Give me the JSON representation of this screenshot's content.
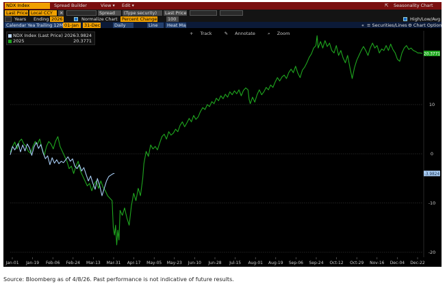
{
  "toolbar": {
    "security": "NDX Index",
    "spread_builder": "Spread Builder",
    "view_menu": "View ▾",
    "edit_menu": "Edit ▾",
    "chart_title": "Seasonality Chart",
    "field1": "Last Price",
    "currency": "Local CCY",
    "spread": "Spread",
    "type_security": "(Type security)",
    "field2": "Last Price",
    "years_label": "Years",
    "ending_label": "Ending",
    "ending_value": "2026",
    "normalize_label": "Normalize Chart",
    "normalize_mode": "Percent Change",
    "normalize_value": "100",
    "high_low_avg": "High/Low/Avg",
    "calendar_year": "Calendar Year",
    "trailing": "Trailing 12M",
    "date_from": "01-Jan",
    "date_to": "31-Dec",
    "frequency": "Daily",
    "line_btn": "Line",
    "heatmap_btn": "Heat Map",
    "securities_lines": "Securities/Lines",
    "chart_options": "Chart Options"
  },
  "tools": {
    "track": "Track",
    "annotate": "Annotate",
    "zoom": "Zoom"
  },
  "legend": [
    {
      "label": "NDX Index (Last Price) 2026",
      "value": "-3.9824",
      "color": "#b7d3f2"
    },
    {
      "label": "2025",
      "value": "20.3771",
      "color": "#1fa81f"
    }
  ],
  "source_note": "Source: Bloomberg as of 4/8/26. Past performance is not indicative of future results.",
  "chart_data": {
    "type": "line",
    "x_tick_labels": [
      "Jan-01",
      "Jan-19",
      "Feb-06",
      "Feb-24",
      "Mar-13",
      "Mar-31",
      "Apr-17",
      "May-05",
      "May-23",
      "Jun-10",
      "Jun-28",
      "Jul-15",
      "Aug-01",
      "Aug-19",
      "Sep-06",
      "Sep-24",
      "Oct-12",
      "Oct-29",
      "Nov-16",
      "Dec-04",
      "Dec-22"
    ],
    "y_ticks": [
      -20,
      -10,
      0,
      10
    ],
    "ylim": [
      -21,
      25
    ],
    "x_day_range": [
      1,
      365
    ],
    "grid": true,
    "series": [
      {
        "name": "2026",
        "color": "#a8cdf5",
        "last_value_label": "-3.9824",
        "points": [
          [
            1,
            -0.2
          ],
          [
            3,
            1.5
          ],
          [
            5,
            0.8
          ],
          [
            8,
            2.1
          ],
          [
            10,
            0.4
          ],
          [
            12,
            1.8
          ],
          [
            14,
            0.6
          ],
          [
            16,
            2.0
          ],
          [
            18,
            1.2
          ],
          [
            20,
            -0.3
          ],
          [
            22,
            1.4
          ],
          [
            24,
            2.3
          ],
          [
            26,
            1.1
          ],
          [
            28,
            1.9
          ],
          [
            30,
            0.2
          ],
          [
            32,
            -1.0
          ],
          [
            34,
            -0.4
          ],
          [
            36,
            -2.2
          ],
          [
            38,
            -0.8
          ],
          [
            40,
            -1.9
          ],
          [
            42,
            -1.2
          ],
          [
            44,
            -2.0
          ],
          [
            46,
            -1.5
          ],
          [
            48,
            -1.8
          ],
          [
            50,
            -1.2
          ],
          [
            52,
            -0.6
          ],
          [
            54,
            -1.5
          ],
          [
            56,
            -1.0
          ],
          [
            58,
            -2.5
          ],
          [
            60,
            -3.0
          ],
          [
            62,
            -2.2
          ],
          [
            64,
            -3.5
          ],
          [
            66,
            -2.8
          ],
          [
            68,
            -4.2
          ],
          [
            70,
            -5.5
          ],
          [
            72,
            -4.5
          ],
          [
            74,
            -6.0
          ],
          [
            76,
            -7.2
          ],
          [
            78,
            -5.0
          ],
          [
            80,
            -6.5
          ],
          [
            82,
            -8.5
          ],
          [
            84,
            -7.0
          ],
          [
            86,
            -5.5
          ],
          [
            88,
            -4.6
          ],
          [
            90,
            -4.3
          ],
          [
            92,
            -4.0
          ],
          [
            93,
            -3.98
          ]
        ]
      },
      {
        "name": "2025",
        "color": "#1fa81f",
        "last_value_label": "20.3771",
        "points": [
          [
            1,
            0.3
          ],
          [
            3,
            1.5
          ],
          [
            5,
            2.4
          ],
          [
            7,
            1.0
          ],
          [
            9,
            2.5
          ],
          [
            11,
            3.0
          ],
          [
            13,
            2.0
          ],
          [
            15,
            1.5
          ],
          [
            17,
            0.5
          ],
          [
            19,
            0.1
          ],
          [
            21,
            1.5
          ],
          [
            23,
            2.5
          ],
          [
            25,
            2.0
          ],
          [
            27,
            3.0
          ],
          [
            29,
            1.2
          ],
          [
            31,
            -0.3
          ],
          [
            33,
            1.5
          ],
          [
            35,
            2.5
          ],
          [
            37,
            2.0
          ],
          [
            39,
            1.0
          ],
          [
            41,
            2.6
          ],
          [
            43,
            3.5
          ],
          [
            45,
            1.5
          ],
          [
            47,
            0.5
          ],
          [
            49,
            -0.5
          ],
          [
            51,
            -1.5
          ],
          [
            53,
            -3.0
          ],
          [
            55,
            -2.5
          ],
          [
            57,
            -4.0
          ],
          [
            59,
            -2.5
          ],
          [
            61,
            -1.5
          ],
          [
            63,
            -3.5
          ],
          [
            65,
            -4.5
          ],
          [
            67,
            -5.5
          ],
          [
            69,
            -6.5
          ],
          [
            71,
            -6.0
          ],
          [
            73,
            -7.5
          ],
          [
            75,
            -6.2
          ],
          [
            77,
            -5.5
          ],
          [
            79,
            -7.0
          ],
          [
            81,
            -5.5
          ],
          [
            83,
            -6.8
          ],
          [
            85,
            -7.5
          ],
          [
            87,
            -8.5
          ],
          [
            89,
            -9.0
          ],
          [
            91,
            -9.5
          ],
          [
            92,
            -15.0
          ],
          [
            93,
            -16.5
          ],
          [
            94,
            -14.5
          ],
          [
            95,
            -18.5
          ],
          [
            96,
            -15.5
          ],
          [
            97,
            -17.5
          ],
          [
            98,
            -11.5
          ],
          [
            100,
            -12.5
          ],
          [
            102,
            -11.0
          ],
          [
            104,
            -13.0
          ],
          [
            106,
            -14.5
          ],
          [
            108,
            -10.5
          ],
          [
            110,
            -8.0
          ],
          [
            112,
            -9.5
          ],
          [
            114,
            -7.0
          ],
          [
            116,
            -8.5
          ],
          [
            118,
            -5.0
          ],
          [
            119,
            -2.0
          ],
          [
            121,
            0.5
          ],
          [
            123,
            -0.5
          ],
          [
            125,
            1.8
          ],
          [
            127,
            1.0
          ],
          [
            129,
            1.5
          ],
          [
            131,
            0.8
          ],
          [
            133,
            2.2
          ],
          [
            135,
            3.5
          ],
          [
            137,
            4.0
          ],
          [
            139,
            3.0
          ],
          [
            141,
            4.5
          ],
          [
            143,
            3.8
          ],
          [
            145,
            4.2
          ],
          [
            147,
            5.0
          ],
          [
            149,
            4.5
          ],
          [
            151,
            5.8
          ],
          [
            153,
            6.5
          ],
          [
            155,
            5.5
          ],
          [
            157,
            6.3
          ],
          [
            159,
            7.2
          ],
          [
            161,
            6.5
          ],
          [
            163,
            7.8
          ],
          [
            165,
            7.0
          ],
          [
            167,
            7.5
          ],
          [
            169,
            8.6
          ],
          [
            171,
            9.4
          ],
          [
            173,
            9.0
          ],
          [
            175,
            10.0
          ],
          [
            177,
            9.6
          ],
          [
            179,
            10.6
          ],
          [
            181,
            10.2
          ],
          [
            183,
            11.3
          ],
          [
            185,
            10.8
          ],
          [
            187,
            11.8
          ],
          [
            189,
            11.2
          ],
          [
            191,
            12.1
          ],
          [
            193,
            11.5
          ],
          [
            195,
            12.6
          ],
          [
            197,
            12.0
          ],
          [
            199,
            12.8
          ],
          [
            201,
            12.2
          ],
          [
            203,
            13.0
          ],
          [
            205,
            11.8
          ],
          [
            207,
            12.9
          ],
          [
            209,
            13.4
          ],
          [
            211,
            13.0
          ],
          [
            212,
            11.0
          ],
          [
            213,
            10.2
          ],
          [
            215,
            11.5
          ],
          [
            217,
            10.5
          ],
          [
            219,
            12.0
          ],
          [
            221,
            13.0
          ],
          [
            223,
            12.0
          ],
          [
            225,
            12.6
          ],
          [
            227,
            13.5
          ],
          [
            229,
            13.0
          ],
          [
            231,
            14.0
          ],
          [
            233,
            13.5
          ],
          [
            235,
            14.6
          ],
          [
            237,
            15.5
          ],
          [
            239,
            14.8
          ],
          [
            241,
            15.6
          ],
          [
            243,
            16.0
          ],
          [
            245,
            15.3
          ],
          [
            247,
            16.5
          ],
          [
            249,
            17.2
          ],
          [
            251,
            16.5
          ],
          [
            253,
            17.8
          ],
          [
            255,
            16.4
          ],
          [
            257,
            15.5
          ],
          [
            259,
            17.0
          ],
          [
            261,
            17.6
          ],
          [
            263,
            18.5
          ],
          [
            265,
            19.6
          ],
          [
            267,
            20.3
          ],
          [
            269,
            21.5
          ],
          [
            271,
            22.0
          ],
          [
            272,
            24.0
          ],
          [
            273,
            21.5
          ],
          [
            275,
            22.8
          ],
          [
            277,
            21.5
          ],
          [
            279,
            23.0
          ],
          [
            281,
            21.8
          ],
          [
            283,
            22.5
          ],
          [
            285,
            21.0
          ],
          [
            287,
            20.5
          ],
          [
            289,
            22.0
          ],
          [
            291,
            20.0
          ],
          [
            293,
            21.0
          ],
          [
            295,
            19.5
          ],
          [
            297,
            18.5
          ],
          [
            299,
            20.0
          ],
          [
            301,
            17.5
          ],
          [
            303,
            15.3
          ],
          [
            305,
            17.5
          ],
          [
            307,
            19.0
          ],
          [
            309,
            20.0
          ],
          [
            311,
            21.0
          ],
          [
            313,
            21.8
          ],
          [
            315,
            21.0
          ],
          [
            317,
            20.0
          ],
          [
            319,
            21.5
          ],
          [
            321,
            22.5
          ],
          [
            323,
            21.5
          ],
          [
            325,
            22.0
          ],
          [
            327,
            20.5
          ],
          [
            329,
            21.3
          ],
          [
            331,
            21.0
          ],
          [
            333,
            22.0
          ],
          [
            335,
            21.0
          ],
          [
            337,
            22.3
          ],
          [
            339,
            21.2
          ],
          [
            341,
            20.5
          ],
          [
            343,
            19.2
          ],
          [
            345,
            18.8
          ],
          [
            347,
            20.5
          ],
          [
            349,
            21.5
          ],
          [
            351,
            22.0
          ],
          [
            353,
            21.2
          ],
          [
            355,
            21.5
          ],
          [
            357,
            21.0
          ],
          [
            359,
            20.8
          ],
          [
            361,
            20.5
          ],
          [
            363,
            20.5
          ],
          [
            365,
            20.4
          ]
        ]
      }
    ]
  }
}
